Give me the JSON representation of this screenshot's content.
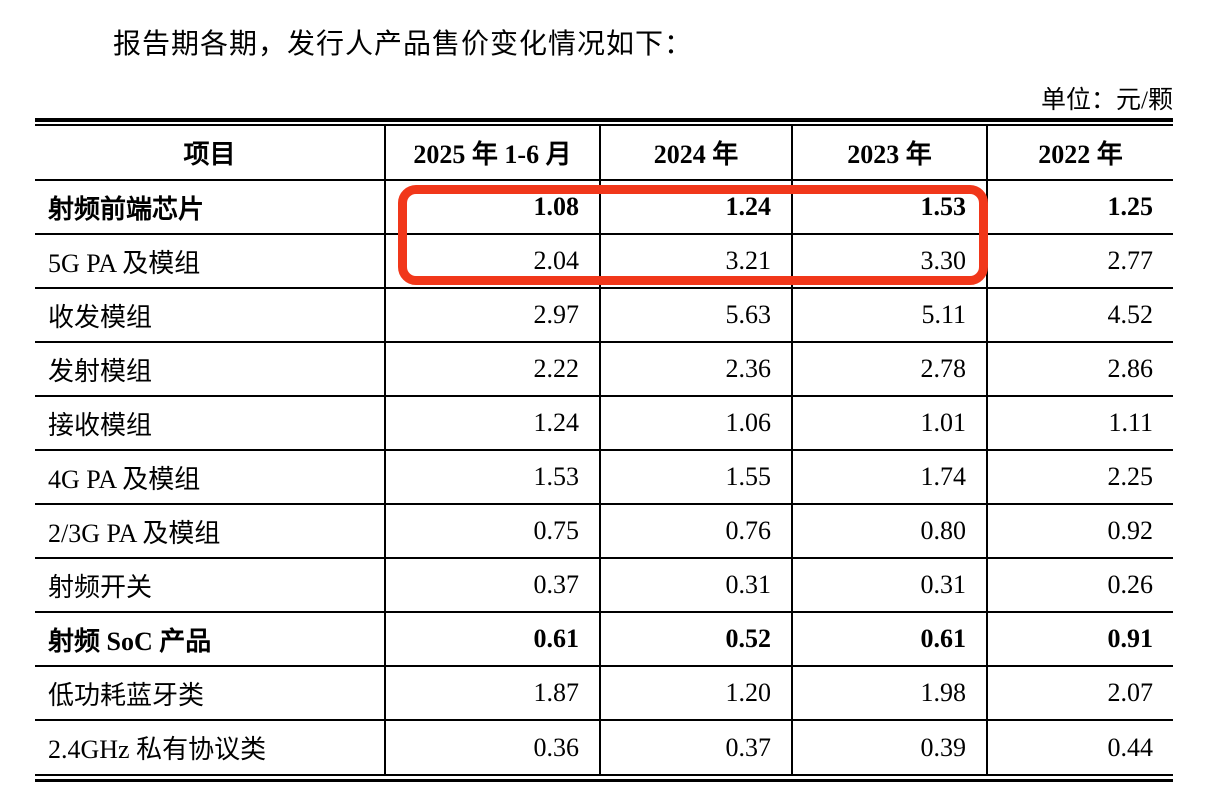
{
  "page": {
    "intro_text": "报告期各期，发行人产品售价变化情况如下：",
    "unit_label": "单位：元/颗"
  },
  "annotation": {
    "shape": "rounded-rectangle-outline",
    "color": "#f1371a",
    "covers": "2025/2024/2023 values of rows 射频前端芯片 and 5G PA 及模组"
  },
  "table": {
    "columns": [
      "项目",
      "2025 年 1-6 月",
      "2024 年",
      "2023 年",
      "2022 年"
    ],
    "rows": [
      {
        "label": "射频前端芯片",
        "bold": true,
        "values": [
          "1.08",
          "1.24",
          "1.53",
          "1.25"
        ]
      },
      {
        "label": "5G PA 及模组",
        "bold": false,
        "values": [
          "2.04",
          "3.21",
          "3.30",
          "2.77"
        ]
      },
      {
        "label": "收发模组",
        "bold": false,
        "values": [
          "2.97",
          "5.63",
          "5.11",
          "4.52"
        ]
      },
      {
        "label": "发射模组",
        "bold": false,
        "values": [
          "2.22",
          "2.36",
          "2.78",
          "2.86"
        ]
      },
      {
        "label": "接收模组",
        "bold": false,
        "values": [
          "1.24",
          "1.06",
          "1.01",
          "1.11"
        ]
      },
      {
        "label": "4G PA 及模组",
        "bold": false,
        "values": [
          "1.53",
          "1.55",
          "1.74",
          "2.25"
        ]
      },
      {
        "label": "2/3G PA 及模组",
        "bold": false,
        "values": [
          "0.75",
          "0.76",
          "0.80",
          "0.92"
        ]
      },
      {
        "label": "射频开关",
        "bold": false,
        "values": [
          "0.37",
          "0.31",
          "0.31",
          "0.26"
        ]
      },
      {
        "label": "射频 SoC 产品",
        "bold": true,
        "values": [
          "0.61",
          "0.52",
          "0.61",
          "0.91"
        ]
      },
      {
        "label": "低功耗蓝牙类",
        "bold": false,
        "values": [
          "1.87",
          "1.20",
          "1.98",
          "2.07"
        ]
      },
      {
        "label": "2.4GHz 私有协议类",
        "bold": false,
        "values": [
          "0.36",
          "0.37",
          "0.39",
          "0.44"
        ]
      }
    ]
  }
}
